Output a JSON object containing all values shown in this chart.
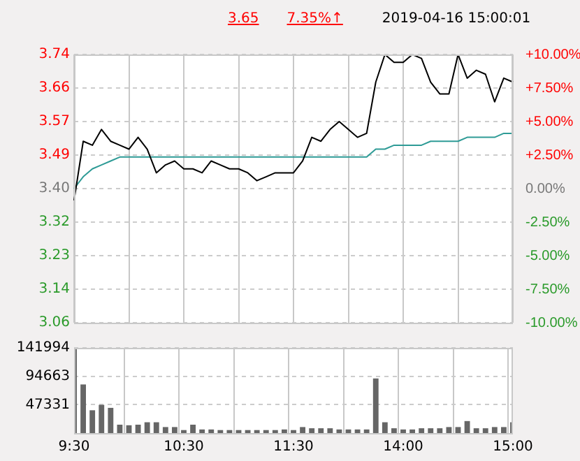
{
  "chart_data": [
    {
      "type": "line",
      "title": "2019-04-16 15:00:01",
      "annotations": [
        "3.65",
        "7.35%↑"
      ],
      "categories": [
        null,
        null,
        null,
        null,
        null,
        null,
        null,
        null,
        null,
        null,
        null,
        null,
        null,
        null,
        null,
        null,
        null,
        null,
        null,
        null,
        null,
        null,
        null,
        null,
        null,
        null,
        null,
        null,
        null,
        null,
        null,
        null,
        null,
        null,
        null,
        null,
        null,
        null,
        null,
        null,
        null,
        null,
        null,
        null,
        null,
        null,
        null,
        null,
        null
      ],
      "series": [
        {
          "color": "#000000",
          "values": [
            3.37,
            3.52,
            3.51,
            3.55,
            3.52,
            3.51,
            3.5,
            3.53,
            3.5,
            3.44,
            3.46,
            3.47,
            3.45,
            3.45,
            3.44,
            3.47,
            3.46,
            3.45,
            3.45,
            3.44,
            3.42,
            3.43,
            3.44,
            3.44,
            3.44,
            3.47,
            3.53,
            3.52,
            3.55,
            3.57,
            3.55,
            3.53,
            3.54,
            3.67,
            3.74,
            3.72,
            3.72,
            3.74,
            3.73,
            3.67,
            3.64,
            3.64,
            3.74,
            3.68,
            3.7,
            3.69,
            3.62,
            3.68,
            3.67
          ]
        },
        {
          "color": "#2e9b96",
          "values": [
            3.4,
            3.43,
            3.45,
            3.46,
            3.47,
            3.48,
            3.48,
            3.48,
            3.48,
            3.48,
            3.48,
            3.48,
            3.48,
            3.48,
            3.48,
            3.48,
            3.48,
            3.48,
            3.48,
            3.48,
            3.48,
            3.48,
            3.48,
            3.48,
            3.48,
            3.48,
            3.48,
            3.48,
            3.48,
            3.48,
            3.48,
            3.48,
            3.48,
            3.5,
            3.5,
            3.51,
            3.51,
            3.51,
            3.51,
            3.52,
            3.52,
            3.52,
            3.52,
            3.53,
            3.53,
            3.53,
            3.53,
            3.54,
            3.54
          ]
        }
      ],
      "ylim": [
        3.06,
        3.74
      ],
      "yticks": [
        3.06,
        {
          "value": 3.145,
          "label": "3.14"
        },
        3.23,
        {
          "value": 3.315,
          "label": "3.32"
        },
        {
          "value": 3.4,
          "label": "3.40"
        },
        {
          "value": 3.485,
          "label": "3.49"
        },
        3.57,
        {
          "value": 3.655,
          "label": "3.66"
        },
        3.74
      ],
      "y2lim": [
        -10,
        10
      ],
      "y2ticks": [
        {
          "value": -10,
          "label": "-10.00%"
        },
        {
          "value": -7.5,
          "label": "-7.50%"
        },
        {
          "value": -5,
          "label": "-5.00%"
        },
        {
          "value": -2.5,
          "label": "-2.50%"
        },
        {
          "value": 0,
          "label": "0.00%"
        },
        {
          "value": 2.5,
          "label": "+2.50%"
        },
        {
          "value": 5,
          "label": "+5.00%"
        },
        {
          "value": 7.5,
          "label": "+7.50%"
        },
        {
          "value": 10,
          "label": "+10.00%"
        }
      ],
      "grid": true,
      "tick_labels": "y"
    },
    {
      "type": "bar",
      "categories": [
        "9:30",
        null,
        null,
        null,
        null,
        null,
        null,
        null,
        null,
        null,
        null,
        null,
        "10:30",
        null,
        null,
        null,
        null,
        null,
        null,
        null,
        null,
        null,
        null,
        null,
        "11:30",
        null,
        null,
        null,
        null,
        null,
        null,
        null,
        null,
        null,
        null,
        null,
        "14:00",
        null,
        null,
        null,
        null,
        null,
        null,
        null,
        null,
        null,
        null,
        null,
        "15:00"
      ],
      "values": [
        141994,
        81000,
        38000,
        47000,
        42000,
        14000,
        13000,
        14000,
        18000,
        18000,
        10000,
        10000,
        5000,
        14000,
        6000,
        6000,
        5000,
        5000,
        5000,
        5000,
        5000,
        5000,
        5000,
        6000,
        5000,
        10000,
        8000,
        8000,
        8000,
        6000,
        6000,
        6000,
        6000,
        91000,
        18000,
        8000,
        6000,
        6000,
        8000,
        8000,
        8000,
        10000,
        10000,
        20000,
        8000,
        8000,
        10000,
        10000,
        18000
      ],
      "color": "#666666",
      "ylim": [
        0,
        141994
      ],
      "yticks": [
        47331,
        94663,
        141994
      ],
      "grid": true
    }
  ]
}
